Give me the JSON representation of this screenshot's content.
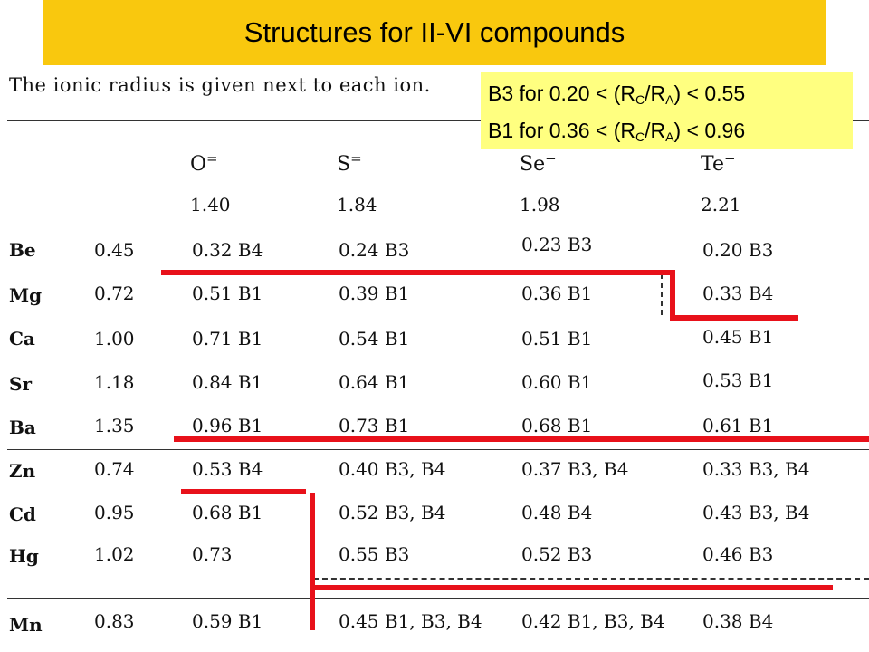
{
  "title": "Structures for II-VI compounds",
  "intro_text": "The ionic radius is given next to each ion.",
  "note": {
    "line1": {
      "pre": "B3 for 0.20 < (R",
      "sub1": "C",
      "mid": "/R",
      "sub2": "A",
      "post": ") < 0.55"
    },
    "line2": {
      "pre": "B1 for 0.36 < (R",
      "sub1": "C",
      "mid": "/R",
      "sub2": "A",
      "post": ") < 0.96"
    }
  },
  "anions": [
    {
      "symbol": "O",
      "charge": "=",
      "radius": "1.40"
    },
    {
      "symbol": "S",
      "charge": "=",
      "radius": "1.84"
    },
    {
      "symbol": "Se",
      "charge": "−",
      "radius": "1.98"
    },
    {
      "symbol": "Te",
      "charge": "−",
      "radius": "2.21"
    }
  ],
  "rows": [
    {
      "cation": "Be",
      "radius": "0.45",
      "cells": [
        "0.32 B4",
        "0.24 B3",
        "0.23 B3",
        "0.20 B3"
      ]
    },
    {
      "cation": "Mg",
      "radius": "0.72",
      "cells": [
        "0.51 B1",
        "0.39 B1",
        "0.36 B1",
        "0.33 B4"
      ]
    },
    {
      "cation": "Ca",
      "radius": "1.00",
      "cells": [
        "0.71 B1",
        "0.54 B1",
        "0.51 B1",
        "0.45 B1"
      ]
    },
    {
      "cation": "Sr",
      "radius": "1.18",
      "cells": [
        "0.84 B1",
        "0.64 B1",
        "0.60 B1",
        "0.53 B1"
      ]
    },
    {
      "cation": "Ba",
      "radius": "1.35",
      "cells": [
        "0.96 B1",
        "0.73 B1",
        "0.68 B1",
        "0.61 B1"
      ]
    },
    {
      "cation": "Zn",
      "radius": "0.74",
      "cells": [
        "0.53 B4",
        "0.40 B3, B4",
        "0.37 B3, B4",
        "0.33 B3, B4"
      ]
    },
    {
      "cation": "Cd",
      "radius": "0.95",
      "cells": [
        "0.68 B1",
        "0.52 B3, B4",
        "0.48 B4",
        "0.43 B3, B4"
      ]
    },
    {
      "cation": "Hg",
      "radius": "1.02",
      "cells": [
        "0.73",
        "0.55 B3",
        "0.52 B3",
        "0.46 B3"
      ]
    },
    {
      "cation": "Mn",
      "radius": "0.83",
      "cells": [
        "0.59 B1",
        "0.45 B1, B3, B4",
        "0.42 B1, B3, B4",
        "0.38 B4"
      ]
    }
  ],
  "colors": {
    "title_bg": "#f9c80e",
    "note_bg": "#ffff80",
    "boundary_line": "#e8111a"
  }
}
